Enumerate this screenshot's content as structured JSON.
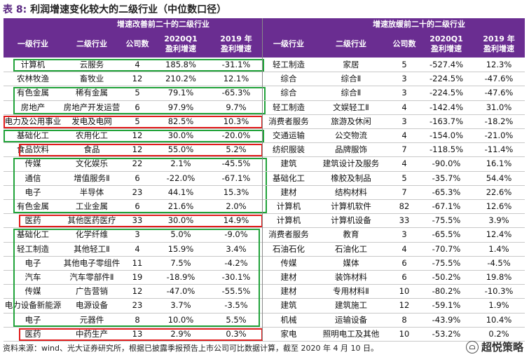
{
  "title": {
    "label": "表 8:",
    "text": "利润增速变化较大的二级行业（中位数口径）"
  },
  "left": {
    "group_title": "增速改善前二十的二级行业",
    "headers": [
      "一级行业",
      "二级行业",
      "公司数",
      "2020Q1\n盈利增速",
      "2019 年\n盈利增速"
    ],
    "rows": [
      [
        "计算机",
        "云服务",
        "4",
        "185.8%",
        "-31.1%"
      ],
      [
        "农林牧渔",
        "畜牧业",
        "12",
        "210.2%",
        "12.1%"
      ],
      [
        "有色金属",
        "稀有金属",
        "5",
        "79.1%",
        "-65.3%"
      ],
      [
        "房地产",
        "房地产开发运营",
        "6",
        "97.9%",
        "9.7%"
      ],
      [
        "电力及公用事业",
        "发电及电网",
        "5",
        "82.5%",
        "10.3%"
      ],
      [
        "基础化工",
        "农用化工",
        "12",
        "30.0%",
        "-20.0%"
      ],
      [
        "食品饮料",
        "食品",
        "12",
        "55.0%",
        "5.2%"
      ],
      [
        "传媒",
        "文化娱乐",
        "22",
        "2.1%",
        "-45.5%"
      ],
      [
        "通信",
        "增值服务Ⅱ",
        "6",
        "-22.0%",
        "-67.1%"
      ],
      [
        "电子",
        "半导体",
        "23",
        "44.1%",
        "15.3%"
      ],
      [
        "有色金属",
        "工业金属",
        "6",
        "21.6%",
        "2.0%"
      ],
      [
        "医药",
        "其他医药医疗",
        "33",
        "30.0%",
        "14.9%"
      ],
      [
        "基础化工",
        "化学纤维",
        "3",
        "5.0%",
        "-9.0%"
      ],
      [
        "轻工制造",
        "其他轻工Ⅱ",
        "4",
        "15.9%",
        "3.4%"
      ],
      [
        "电子",
        "其他电子零组件",
        "11",
        "7.5%",
        "-4.2%"
      ],
      [
        "汽车",
        "汽车零部件Ⅱ",
        "19",
        "-18.9%",
        "-30.1%"
      ],
      [
        "传媒",
        "广告营销",
        "12",
        "-47.0%",
        "-55.5%"
      ],
      [
        "电力设备新能源",
        "电源设备",
        "23",
        "3.7%",
        "-3.5%"
      ],
      [
        "电子",
        "元器件",
        "8",
        "10.0%",
        "5.5%"
      ],
      [
        "医药",
        "中药生产",
        "13",
        "2.9%",
        "0.3%"
      ]
    ]
  },
  "right": {
    "group_title": "增速放缓前二十的二级行业",
    "headers": [
      "一级行业",
      "二级行业",
      "公司数",
      "2020Q1\n盈利增速",
      "2019 年\n盈利增速"
    ],
    "rows": [
      [
        "轻工制造",
        "家居",
        "5",
        "-527.4%",
        "12.3%"
      ],
      [
        "综合",
        "综合Ⅱ",
        "3",
        "-224.5%",
        "-47.6%"
      ],
      [
        "综合",
        "综合Ⅱ",
        "3",
        "-224.5%",
        "-47.6%"
      ],
      [
        "轻工制造",
        "文娱轻工Ⅱ",
        "4",
        "-142.4%",
        "31.0%"
      ],
      [
        "消费者服务",
        "旅游及休闲",
        "3",
        "-163.7%",
        "-18.2%"
      ],
      [
        "交通运输",
        "公交物流",
        "4",
        "-154.0%",
        "-21.0%"
      ],
      [
        "纺织服装",
        "品牌服饰",
        "7",
        "-118.5%",
        "-11.4%"
      ],
      [
        "建筑",
        "建筑设计及服务",
        "4",
        "-90.0%",
        "16.1%"
      ],
      [
        "基础化工",
        "橡胶及制品",
        "5",
        "-35.7%",
        "54.4%"
      ],
      [
        "建材",
        "结构材料",
        "7",
        "-65.3%",
        "22.6%"
      ],
      [
        "计算机",
        "计算机软件",
        "82",
        "-67.1%",
        "12.6%"
      ],
      [
        "计算机",
        "计算机设备",
        "33",
        "-75.5%",
        "3.9%"
      ],
      [
        "消费者服务",
        "教育",
        "3",
        "-65.5%",
        "12.4%"
      ],
      [
        "石油石化",
        "石油化工",
        "4",
        "-70.7%",
        "1.4%"
      ],
      [
        "传媒",
        "媒体",
        "6",
        "-75.5%",
        "-4.5%"
      ],
      [
        "建材",
        "装饰材料",
        "6",
        "-50.2%",
        "19.8%"
      ],
      [
        "建材",
        "专用材料Ⅱ",
        "10",
        "-80.2%",
        "-10.3%"
      ],
      [
        "建筑",
        "建筑施工",
        "12",
        "-59.1%",
        "1.9%"
      ],
      [
        "机械",
        "运输设备",
        "8",
        "-43.9%",
        "10.4%"
      ],
      [
        "家电",
        "照明电工及其他",
        "10",
        "-53.2%",
        "0.2%"
      ]
    ]
  },
  "footer": "资料来源：wind、光大证券研究所，根据已披露季报预告上市公司可比数据计算，截至 2020 年 4 月 10 日。",
  "watermark": "超悦策略",
  "colors": {
    "header_bg": "#6a2d91",
    "green_box": "#21a33a",
    "red_box": "#e01b1b"
  }
}
